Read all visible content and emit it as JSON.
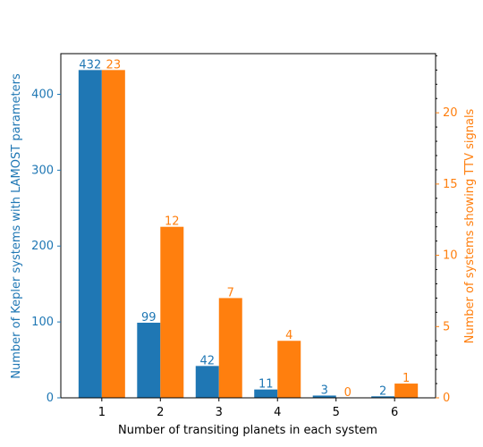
{
  "chart_data": {
    "type": "bar",
    "xlabel": "Number of transiting planets in each system",
    "ylabel_left": "Number of Kepler systems with LAMOST parameters",
    "ylabel_right": "Number of systems showing TTV signals",
    "categories": [
      "1",
      "2",
      "3",
      "4",
      "5",
      "6"
    ],
    "series": [
      {
        "axis": "left",
        "color": "#1f77b4",
        "values": [
          432,
          99,
          42,
          11,
          3,
          2
        ]
      },
      {
        "axis": "right",
        "color": "#ff7f0e",
        "values": [
          23,
          12,
          7,
          4,
          0,
          1
        ]
      }
    ],
    "left_axis": {
      "range": [
        0,
        453.6
      ],
      "ticks": [
        0,
        100,
        200,
        300,
        400
      ],
      "minor_step": 0
    },
    "right_axis": {
      "range": [
        0,
        24.15
      ],
      "ticks": [
        0,
        5,
        10,
        15,
        20
      ],
      "minor_step": 1
    },
    "x_range": [
      0.3,
      6.7
    ],
    "grid": false,
    "legend": "none"
  }
}
